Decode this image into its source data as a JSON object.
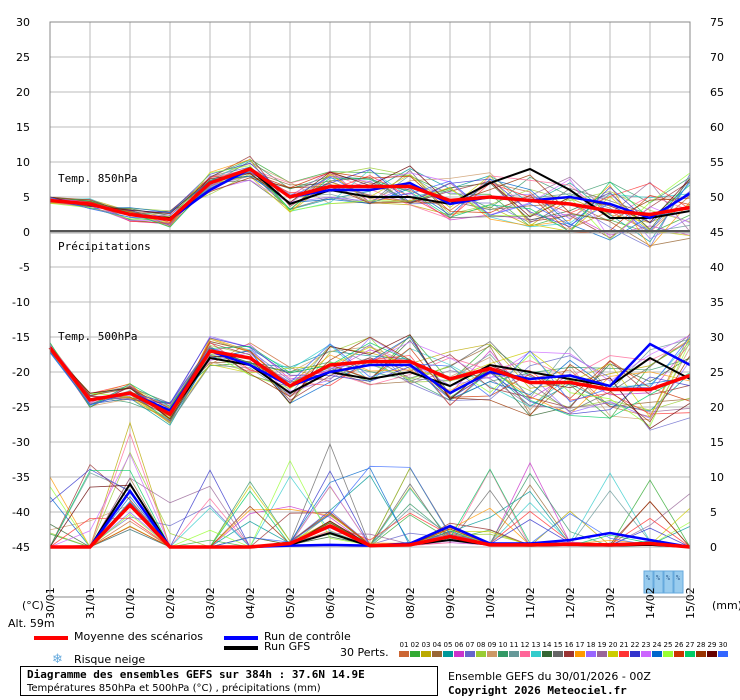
{
  "chart_data": {
    "type": "line",
    "x_labels": [
      "30/01",
      "31/01",
      "01/02",
      "02/02",
      "03/02",
      "04/02",
      "05/02",
      "06/02",
      "07/02",
      "08/02",
      "09/02",
      "10/02",
      "11/02",
      "12/02",
      "13/02",
      "14/02",
      "15/02"
    ],
    "x_unit": "(°C)",
    "x_unit_right": "(mm)",
    "y_left_ticks": [
      30,
      25,
      20,
      15,
      10,
      5,
      0,
      -5,
      -10,
      -15,
      -20,
      -25,
      -30,
      -35,
      -40,
      -45
    ],
    "y_right_ticks": [
      75,
      70,
      65,
      60,
      55,
      50,
      45,
      40,
      35,
      30,
      25,
      20,
      15,
      10,
      5,
      0
    ],
    "annotations": {
      "t850": "Temp. 850hPa",
      "precip": "Précipitations",
      "t500": "Temp. 500hPa",
      "alt": "Alt. 59m"
    },
    "t850_mean": [
      4.5,
      4,
      2.5,
      1.8,
      7,
      9,
      5,
      6.5,
      6.5,
      6.5,
      4.5,
      5,
      4.5,
      4,
      3,
      2.5,
      3.5
    ],
    "t850_control": [
      4.5,
      4,
      2.5,
      1.8,
      6,
      9,
      5,
      6,
      6,
      7,
      4,
      5,
      4.5,
      5,
      4,
      2,
      5.5
    ],
    "t850_gfs": [
      4.5,
      4,
      2.5,
      2,
      6,
      9,
      4,
      6,
      5,
      5,
      4,
      7,
      9,
      6,
      2,
      2,
      3
    ],
    "t500_mean": [
      -16.5,
      -24,
      -23,
      -26,
      -17,
      -18,
      -22,
      -19,
      -18.5,
      -18.5,
      -21,
      -19.5,
      -21.5,
      -21.5,
      -22.5,
      -22.5,
      -20.5
    ],
    "t500_control": [
      -16.5,
      -24,
      -23,
      -25.5,
      -17,
      -19,
      -22,
      -20,
      -19,
      -19,
      -23,
      -20,
      -21,
      -20.5,
      -22,
      -16,
      -19
    ],
    "t500_gfs": [
      -16.5,
      -24,
      -23,
      -26,
      -18,
      -19,
      -23,
      -20,
      -21,
      -20,
      -22,
      -19,
      -20,
      -21,
      -22,
      -18,
      -21
    ],
    "precip_mean": [
      0,
      0,
      6,
      0,
      0,
      0,
      0.5,
      3,
      0.2,
      0.3,
      1.5,
      0.3,
      0.3,
      0.4,
      0.3,
      0.5,
      0
    ],
    "precip_control": [
      0,
      0,
      8,
      0,
      0,
      0,
      0.2,
      0.3,
      0.2,
      0.5,
      3,
      0.5,
      0.5,
      1,
      2,
      1,
      0
    ],
    "precip_gfs": [
      0,
      0,
      9,
      0,
      0,
      0,
      0.3,
      2,
      0.1,
      0.3,
      1,
      0.3,
      0.2,
      0.3,
      0.2,
      0.3,
      0
    ],
    "snow_risk_labels": [
      "%",
      "%",
      "%",
      "%"
    ]
  },
  "legend": {
    "mean": "Moyenne des scénarios",
    "control": "Run de contrôle",
    "gfs": "Run GFS",
    "snow": "Risque neige",
    "perts_label": "30 Perts.",
    "colors": {
      "mean": "#ff0000",
      "control": "#0000ff",
      "gfs": "#000000",
      "snow": "#66aadd"
    }
  },
  "perts": {
    "numbers": [
      "01",
      "02",
      "03",
      "04",
      "05",
      "06",
      "07",
      "08",
      "09",
      "10",
      "11",
      "12",
      "13",
      "14",
      "15",
      "16",
      "17",
      "18",
      "19",
      "20",
      "21",
      "22",
      "23",
      "24",
      "25",
      "26",
      "27",
      "28",
      "29",
      "30"
    ],
    "colors": [
      "#cc6633",
      "#33aa33",
      "#bbaa00",
      "#996633",
      "#009999",
      "#cc33cc",
      "#6666cc",
      "#99cc33",
      "#cc9966",
      "#339966",
      "#669999",
      "#ff6699",
      "#33cccc",
      "#336633",
      "#666666",
      "#993333",
      "#ff9900",
      "#9966ff",
      "#996699",
      "#cccc00",
      "#ff3333",
      "#3333cc",
      "#cc66ff",
      "#0066cc",
      "#99ff33",
      "#cc3300",
      "#00cc66",
      "#993300",
      "#660000",
      "#3366ff"
    ]
  },
  "footer": {
    "title": "Diagramme des ensembles GEFS sur 384h : 37.6N 14.9E",
    "subtitle": "Températures 850hPa et 500hPa (°C) , précipitations (mm)",
    "run": "Ensemble GEFS du 30/01/2026 - 00Z",
    "copyright": "Copyright 2026 Meteociel.fr"
  }
}
